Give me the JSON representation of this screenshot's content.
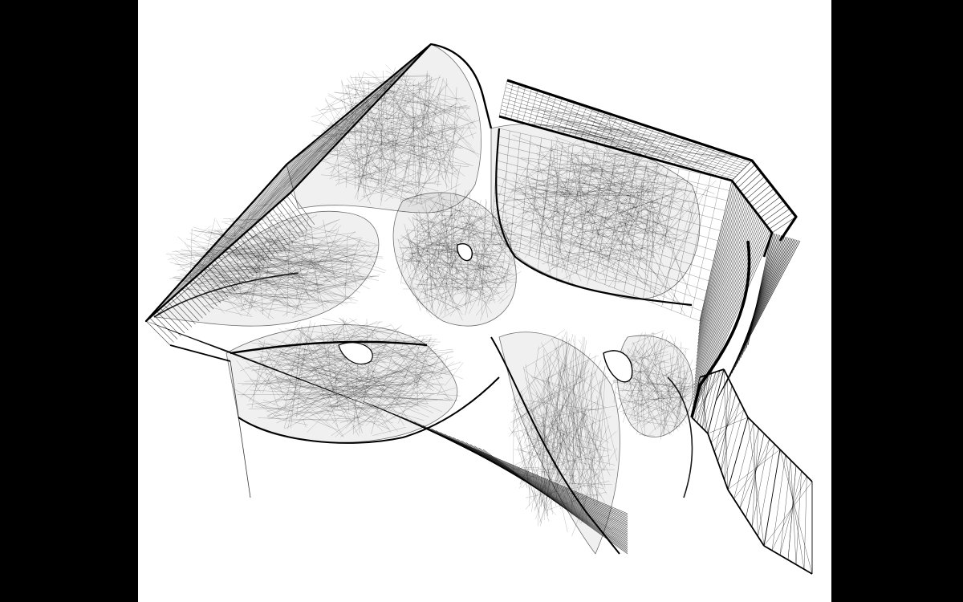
{
  "colors": {
    "letterbox": "#000000",
    "background": "#ffffff",
    "ink": "#000000"
  },
  "scene": {
    "subject": "wireframe-mesh-render"
  }
}
